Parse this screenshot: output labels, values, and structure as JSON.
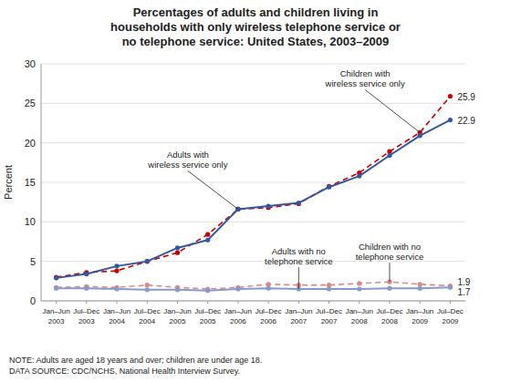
{
  "chart_data": {
    "type": "line",
    "title": "Percentages of adults and children living in\nhouseholds with only wireless telephone service or\nno telephone service: United States, 2003–2009",
    "ylabel": "Percent",
    "note": "NOTE: Adults are aged 18 years and over; children are under age 18.\nDATA SOURCE: CDC/NCHS, National Health Interview Survey.",
    "categories": [
      "Jan–Jun\n2003",
      "Jul–Dec\n2003",
      "Jan–Jun\n2004",
      "Jul–Dec\n2004",
      "Jan–Jun\n2005",
      "Jul–Dec\n2005",
      "Jan–Jun\n2006",
      "Jul–Dec\n2006",
      "Jan–Jun\n2007",
      "Jul–Dec\n2007",
      "Jan–Jun\n2008",
      "Jul–Dec\n2008",
      "Jan–Jun\n2009",
      "Jul–Dec\n2009"
    ],
    "series": [
      {
        "name": "Adults with\nwireless service only",
        "color": "#3358a0",
        "line_style": "solid",
        "marker": "circle",
        "values": [
          2.9,
          3.4,
          4.4,
          5.0,
          6.7,
          7.7,
          11.6,
          12.0,
          12.4,
          14.4,
          15.8,
          18.4,
          20.9,
          22.9
        ]
      },
      {
        "name": "Children with\nwireless service only",
        "color": "#cc0000",
        "line_style": "dashed",
        "marker": "circle",
        "values": [
          3.0,
          3.6,
          3.8,
          5.0,
          6.1,
          8.4,
          11.6,
          11.8,
          12.3,
          14.5,
          16.2,
          18.9,
          21.3,
          25.9
        ]
      },
      {
        "name": "Adults with no\ntelephone service",
        "color": "#8899cc",
        "line_style": "solid",
        "marker": "circle",
        "values": [
          1.6,
          1.6,
          1.5,
          1.4,
          1.4,
          1.3,
          1.5,
          1.6,
          1.5,
          1.5,
          1.5,
          1.6,
          1.6,
          1.7
        ]
      },
      {
        "name": "Children with no\ntelephone service",
        "color": "#dd8888",
        "line_style": "dashed",
        "marker": "circle",
        "values": [
          1.7,
          1.8,
          1.7,
          2.0,
          1.7,
          1.5,
          1.7,
          2.1,
          2.0,
          2.0,
          2.2,
          2.4,
          2.1,
          1.9
        ]
      }
    ],
    "ylim": [
      0,
      30
    ],
    "yticks": [
      0,
      5,
      10,
      15,
      20,
      25,
      30
    ],
    "grid": true
  }
}
